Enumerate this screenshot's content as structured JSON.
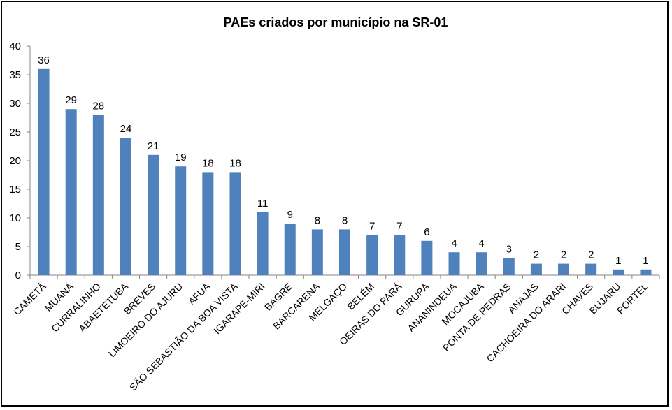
{
  "chart_data": {
    "type": "bar",
    "title": "PAEs criados por município na SR-01",
    "xlabel": "",
    "ylabel": "",
    "ylim": [
      0,
      40
    ],
    "yticks": [
      0,
      5,
      10,
      15,
      20,
      25,
      30,
      35,
      40
    ],
    "grid": false,
    "legend": "none",
    "bar_color": "#4F81BD",
    "categories": [
      "CAMETÁ",
      "MUANÁ",
      "CURRALINHO",
      "ABAETETUBA",
      "BREVES",
      "LIMOEIRO DO AJURU",
      "AFUÁ",
      "SÃO SEBASTIÃO DA BOA VISTA",
      "IGARAPÉ-MIRI",
      "BAGRE",
      "BARCARENA",
      "MELGAÇO",
      "BELÉM",
      "OEIRAS DO PARÁ",
      "GURUPÁ",
      "ANANINDEUA",
      "MOCAJUBA",
      "PONTA DE PEDRAS",
      "ANAJÁS",
      "CACHOEIRA DO ARARI",
      "CHAVES",
      "BUJARU",
      "PORTEL"
    ],
    "values": [
      36,
      29,
      28,
      24,
      21,
      19,
      18,
      18,
      11,
      9,
      8,
      8,
      7,
      7,
      6,
      4,
      4,
      3,
      2,
      2,
      2,
      1,
      1
    ]
  }
}
